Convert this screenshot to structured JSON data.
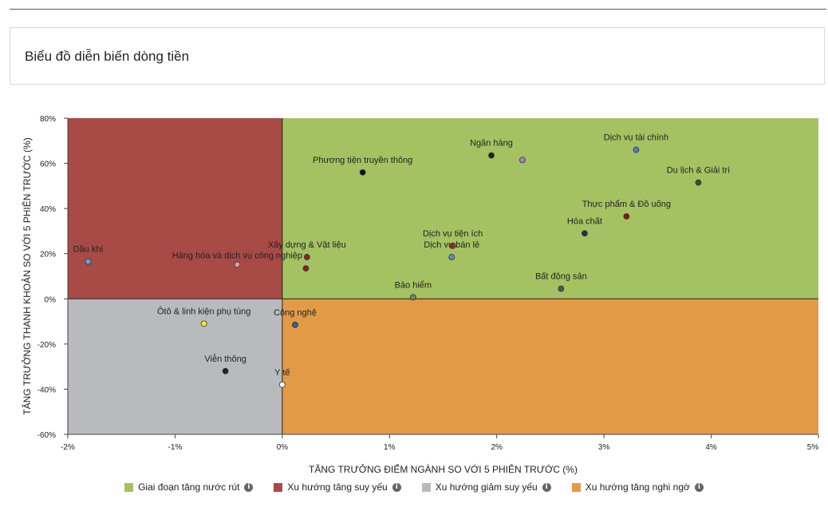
{
  "header": {
    "title": "Biểu đồ diễn biến dòng tiền"
  },
  "chart_data": {
    "type": "scatter",
    "title": "Biểu đồ diễn biến dòng tiền",
    "xlabel": "TĂNG TRƯỞNG ĐIỂM NGÀNH SO VỚI 5 PHIÊN TRƯỚC (%)",
    "ylabel": "TĂNG TRƯỞNG THANH KHOẢN SO VỚI 5 PHIÊN TRƯỚC (%)",
    "xlim": [
      -2,
      5
    ],
    "ylim": [
      -60,
      80
    ],
    "x_ticks": [
      -2,
      -1,
      0,
      1,
      2,
      3,
      4,
      5
    ],
    "y_ticks": [
      -60,
      -40,
      -20,
      0,
      20,
      40,
      60,
      80
    ],
    "x_tick_labels": [
      "-2%",
      "-1%",
      "0%",
      "1%",
      "2%",
      "3%",
      "4%",
      "5%"
    ],
    "y_tick_labels": [
      "-60%",
      "-40%",
      "-20%",
      "0%",
      "20%",
      "40%",
      "60%",
      "80%"
    ],
    "quadrants": [
      {
        "name": "Giai đoạn tăng nước rút",
        "color": "#a4c262",
        "x": [
          0,
          5
        ],
        "y": [
          0,
          80
        ]
      },
      {
        "name": "Xu hướng tăng suy yếu",
        "color": "#a84a46",
        "x": [
          -2,
          0
        ],
        "y": [
          0,
          80
        ]
      },
      {
        "name": "Xu hướng giảm suy yếu",
        "color": "#b9babe",
        "x": [
          -2,
          0
        ],
        "y": [
          -60,
          0
        ]
      },
      {
        "name": "Xu hướng tăng nghi ngờ",
        "color": "#e39a47",
        "x": [
          0,
          5
        ],
        "y": [
          -60,
          0
        ]
      }
    ],
    "legend_position": "bottom",
    "points": [
      {
        "label": "Dầu khí",
        "x": -1.81,
        "y": 16.5,
        "color": "#5aa7e6",
        "label_dx": 0,
        "label_dy": -12
      },
      {
        "label": "Hàng hóa và dịch vụ công nghiệp",
        "x": -0.42,
        "y": 15.2,
        "color": "#d79e9e",
        "label_dx": 0,
        "label_dy": -8
      },
      {
        "label": "Xây dựng & Vật liệu",
        "x": 0.23,
        "y": 18.5,
        "color": "#9b1c2b",
        "label_dx": 0,
        "label_dy": -12
      },
      {
        "label": "",
        "x": 0.22,
        "y": 13.5,
        "color": "#8a1e2a",
        "label_dx": 0,
        "label_dy": 0
      },
      {
        "label": "Phương tiện truyền thông",
        "x": 0.75,
        "y": 56,
        "color": "#111111",
        "label_dx": 0,
        "label_dy": -12
      },
      {
        "label": "Ngân hàng",
        "x": 1.95,
        "y": 63.5,
        "color": "#1a2330",
        "label_dx": 0,
        "label_dy": -12
      },
      {
        "label": "",
        "x": 2.24,
        "y": 61.5,
        "color": "#a77ec9",
        "label_dx": 0,
        "label_dy": 0
      },
      {
        "label": "Dịch vụ tài chính",
        "x": 3.3,
        "y": 66,
        "color": "#4f78d4",
        "label_dx": 0,
        "label_dy": -12
      },
      {
        "label": "Du lịch & Giải trí",
        "x": 3.88,
        "y": 51.5,
        "color": "#3a4e2e",
        "label_dx": 0,
        "label_dy": -12
      },
      {
        "label": "Thực phẩm & Đồ uống",
        "x": 3.21,
        "y": 36.5,
        "color": "#8a1818",
        "label_dx": 0,
        "label_dy": -12
      },
      {
        "label": "Hóa chất",
        "x": 2.82,
        "y": 29,
        "color": "#1e2f58",
        "label_dx": 0,
        "label_dy": -12
      },
      {
        "label": "Dịch vụ tiện ích",
        "x": 1.59,
        "y": 23.5,
        "color": "#c22b2b",
        "label_dx": 0,
        "label_dy": -12
      },
      {
        "label": "Dịch vụ bán lẻ",
        "x": 1.58,
        "y": 18.5,
        "color": "#5b8ec9",
        "label_dx": 0,
        "label_dy": -12
      },
      {
        "label": "Bất động sản",
        "x": 2.6,
        "y": 4.5,
        "color": "#4e5b45",
        "label_dx": 0,
        "label_dy": -12
      },
      {
        "label": "Bảo hiểm",
        "x": 1.22,
        "y": 0.7,
        "color": "#7a7f70",
        "label_dx": 0,
        "label_dy": -12
      },
      {
        "label": "Ôtô & linh kiện phụ tùng",
        "x": -0.73,
        "y": -11,
        "color": "#f2ea30",
        "label_dx": 0,
        "label_dy": -12
      },
      {
        "label": "Công nghệ",
        "x": 0.12,
        "y": -11.5,
        "color": "#3b5d9d",
        "label_dx": 0,
        "label_dy": -12
      },
      {
        "label": "Viễn thông",
        "x": -0.53,
        "y": -32,
        "color": "#1c2a1a",
        "label_dx": 0,
        "label_dy": -12
      },
      {
        "label": "Y tế",
        "x": 0.0,
        "y": -38,
        "color": "#fbfbf4",
        "label_dx": 0,
        "label_dy": -12
      }
    ]
  },
  "legend": {
    "items": [
      {
        "label": "Giai đoạn tăng nước rút",
        "color": "#a4c262",
        "info_icon": "i"
      },
      {
        "label": "Xu hướng tăng suy yếu",
        "color": "#a84a46",
        "info_icon": "i"
      },
      {
        "label": "Xu hướng giảm suy yếu",
        "color": "#b9babe",
        "info_icon": "i"
      },
      {
        "label": "Xu hướng tăng nghi ngờ",
        "color": "#e39a47",
        "info_icon": "i"
      }
    ]
  }
}
